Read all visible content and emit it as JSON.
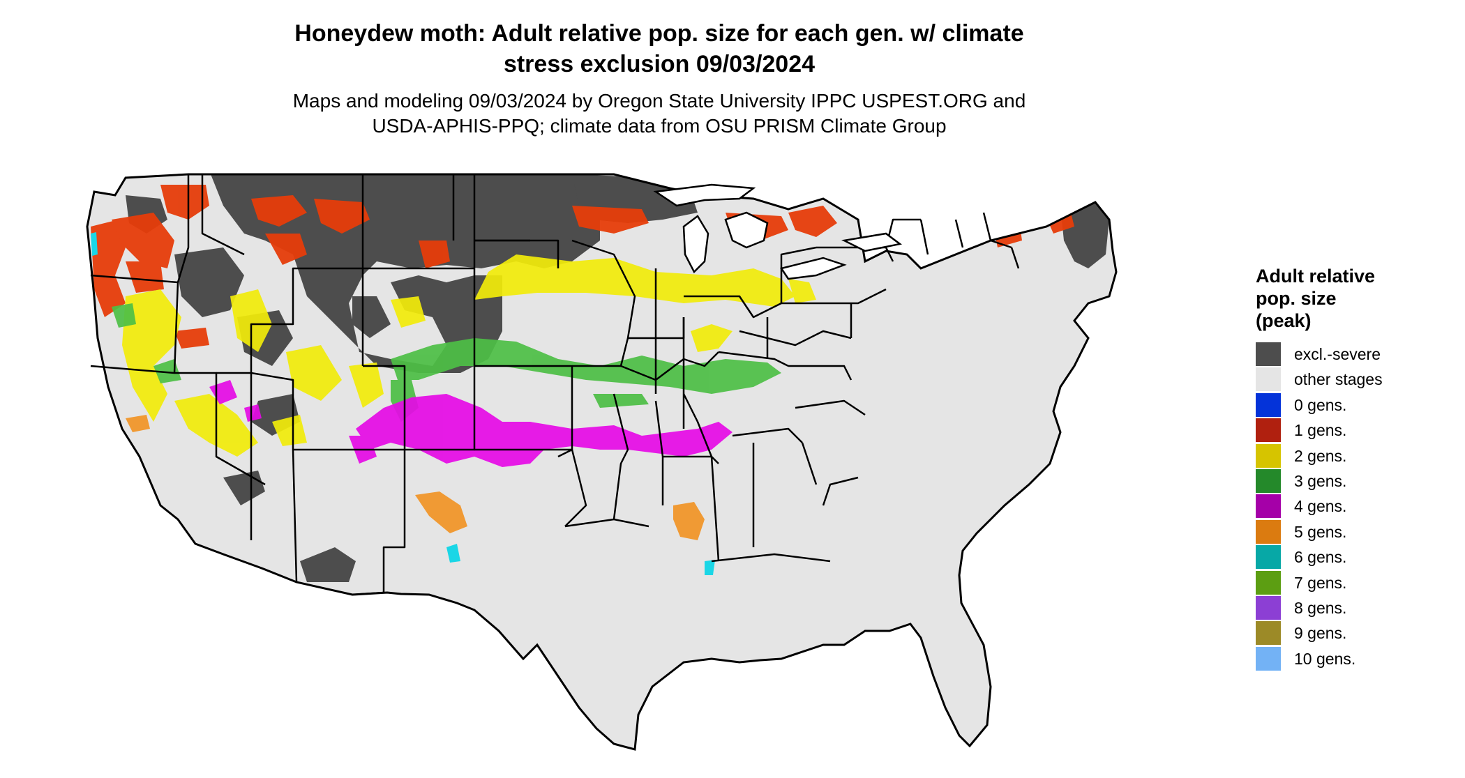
{
  "title": {
    "line1": "Honeydew moth: Adult relative pop. size for each gen. w/ climate",
    "line2": "stress exclusion 09/03/2024"
  },
  "subtitle": {
    "line1": "Maps and modeling 09/03/2024 by Oregon State University IPPC USPEST.ORG and",
    "line2": "USDA-APHIS-PPQ; climate data from OSU PRISM Climate Group"
  },
  "legend": {
    "title_lines": [
      "Adult relative",
      "pop. size",
      "(peak)"
    ],
    "items": [
      {
        "label": "excl.-severe",
        "color": "#4d4d4d"
      },
      {
        "label": "other stages",
        "color": "#e5e5e5"
      },
      {
        "label": "0 gens.",
        "color": "#0433d9"
      },
      {
        "label": "1 gens.",
        "color": "#b0200f"
      },
      {
        "label": "2 gens.",
        "color": "#d6c400"
      },
      {
        "label": "3 gens.",
        "color": "#24892a"
      },
      {
        "label": "4 gens.",
        "color": "#a500a8"
      },
      {
        "label": "5 gens.",
        "color": "#db7b10"
      },
      {
        "label": "6 gens.",
        "color": "#07a8a6"
      },
      {
        "label": "7 gens.",
        "color": "#5c9e12"
      },
      {
        "label": "8 gens.",
        "color": "#8c3fd4"
      },
      {
        "label": "9 gens.",
        "color": "#9c8a27"
      },
      {
        "label": "10 gens.",
        "color": "#73b2f5"
      }
    ]
  },
  "map": {
    "region": "Contiguous United States",
    "base_color": "#e5e5e5",
    "border_color": "#000000",
    "map_colors": {
      "excluded": "#4d4d4d",
      "gen1": "#e63d0a",
      "gen2": "#f2ec0a",
      "gen3": "#4dbf45",
      "gen4": "#e60ae6",
      "gen5": "#f0962a",
      "gen6": "#1ad6e6"
    }
  }
}
